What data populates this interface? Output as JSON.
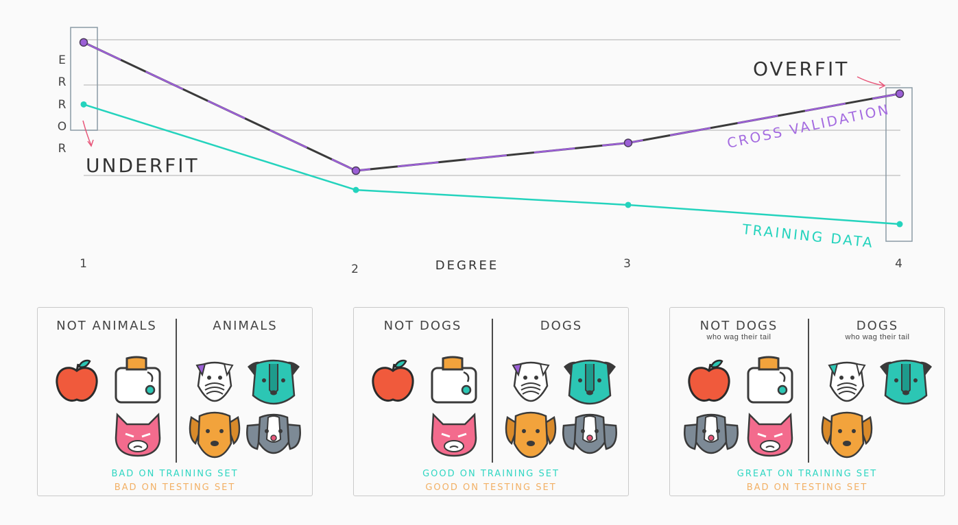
{
  "chart_data": {
    "type": "line",
    "x": [
      1,
      2,
      3,
      4
    ],
    "xlabel": "DEGREE",
    "ylabel": "ERROR",
    "series": [
      {
        "name": "CROSS VALIDATION",
        "values": [
          9.3,
          3.3,
          4.6,
          6.9
        ],
        "color": "#9b5fd6"
      },
      {
        "name": "TRAINING DATA",
        "values": [
          6.4,
          2.4,
          1.7,
          0.8
        ],
        "color": "#24d3bd"
      }
    ],
    "annotations": [
      "UNDERFIT",
      "OVERFIT"
    ],
    "grid": true,
    "legend": "inline labels"
  },
  "chart_text": {
    "ylabel_letters": [
      "E",
      "R",
      "R",
      "O",
      "R"
    ],
    "xlabel": "DEGREE",
    "ticks": [
      "1",
      "2",
      "3",
      "4"
    ],
    "underfit": "UNDERFIT",
    "overfit": "OVERFIT",
    "cv_label": "CROSS VALIDATION",
    "train_label": "TRAINING DATA"
  },
  "panels": [
    {
      "left_title": "NOT ANIMALS",
      "right_title": "ANIMALS",
      "left_sub": "",
      "right_sub": "",
      "training": "BAD ON TRAINING SET",
      "testing": "BAD ON TESTING SET"
    },
    {
      "left_title": "NOT DOGS",
      "right_title": "DOGS",
      "left_sub": "",
      "right_sub": "",
      "training": "GOOD ON TRAINING SET",
      "testing": "GOOD ON TESTING SET"
    },
    {
      "left_title": "NOT DOGS",
      "right_title": "DOGS",
      "left_sub": "who wag their tail",
      "right_sub": "who wag their tail",
      "training": "GREAT ON TRAINING SET",
      "testing": "BAD ON TESTING SET"
    }
  ],
  "colors": {
    "cv": "#9b5fd6",
    "training": "#24d3bd",
    "grid": "#c8c8c8",
    "annotation_arrow": "#e8577a",
    "apple": "#f05a3c",
    "toaster_bread": "#f2a33c",
    "cat": "#f36b8d",
    "dog_orange": "#f2a33c",
    "dog_teal": "#2cc6b4",
    "dog_grey": "#7d8a96"
  }
}
